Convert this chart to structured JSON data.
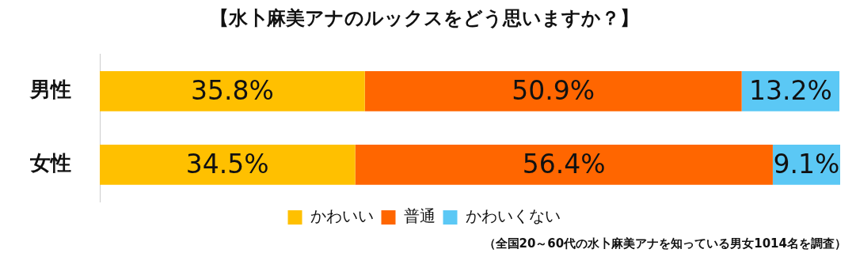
{
  "chart_data": {
    "type": "bar",
    "orientation": "horizontal",
    "stacked": true,
    "title": "【水卜麻美アナのルックスをどう思いますか？】",
    "categories": [
      "男性",
      "女性"
    ],
    "series": [
      {
        "name": "かわいい",
        "color": "#ffc000",
        "values": [
          35.8,
          34.5
        ],
        "value_labels": [
          "35.8%",
          "34.5%"
        ]
      },
      {
        "name": "普通",
        "color": "#ff6600",
        "values": [
          50.9,
          56.4
        ],
        "value_labels": [
          "50.9%",
          "56.4%"
        ]
      },
      {
        "name": "かわいくない",
        "color": "#5bc8f5",
        "values": [
          13.2,
          9.1
        ],
        "value_labels": [
          "13.2%",
          "9.1%"
        ]
      }
    ],
    "legend": "bottom",
    "tick_labels": "y",
    "annotations": [
      "（全国20～60代の水卜麻美アナを知っている男女1014名を調査）"
    ]
  }
}
